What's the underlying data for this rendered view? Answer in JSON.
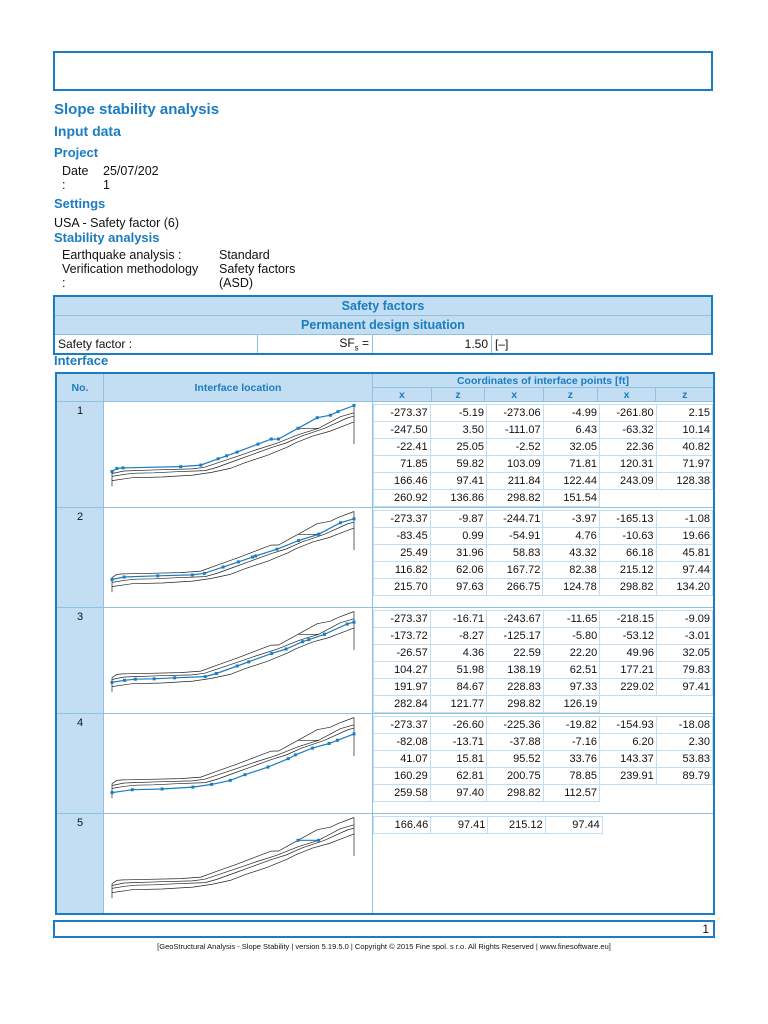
{
  "title": "Slope stability analysis",
  "input_data": "Input data",
  "project": {
    "heading": "Project",
    "date_label": "Date",
    "date_colon": ":",
    "date_value": "25/07/202",
    "date_value2": "1"
  },
  "settings": {
    "heading": "Settings",
    "value": "USA - Safety factor (6)"
  },
  "stability": {
    "heading": "Stability analysis",
    "rows": [
      {
        "label": "Earthquake analysis :",
        "value": "Standard"
      },
      {
        "label": "Verification methodology",
        "label2": ":",
        "value": "Safety factors",
        "value2": "(ASD)"
      }
    ]
  },
  "safety_factors": {
    "title": "Safety factors",
    "subtitle": "Permanent design situation",
    "label": "Safety factor :",
    "symbol": "SF",
    "sub": "s",
    "eq": " =",
    "value": "1.50",
    "unit": "[–]"
  },
  "interface": {
    "heading": "Interface",
    "col_no": "No.",
    "col_loc": "Interface location",
    "col_coords": "Coordinates of interface points [ft]",
    "x": "x",
    "z": "z",
    "highlight_color": "#1a7cc1",
    "rows": [
      {
        "no": "1",
        "points": [
          [
            -273.37,
            -5.19
          ],
          [
            -273.06,
            -4.99
          ],
          [
            -261.8,
            2.15
          ],
          [
            -247.5,
            3.5
          ],
          [
            -111.07,
            6.43
          ],
          [
            -63.32,
            10.14
          ],
          [
            -22.41,
            25.05
          ],
          [
            -2.52,
            32.05
          ],
          [
            22.36,
            40.82
          ],
          [
            71.85,
            59.82
          ],
          [
            103.09,
            71.81
          ],
          [
            120.31,
            71.97
          ],
          [
            166.46,
            97.41
          ],
          [
            211.84,
            122.44
          ],
          [
            243.09,
            128.38
          ],
          [
            260.92,
            136.86
          ],
          [
            298.82,
            151.54
          ]
        ]
      },
      {
        "no": "2",
        "points": [
          [
            -273.37,
            -9.87
          ],
          [
            -244.71,
            -3.97
          ],
          [
            -165.13,
            -1.08
          ],
          [
            -83.45,
            0.99
          ],
          [
            -54.91,
            4.76
          ],
          [
            -10.63,
            19.66
          ],
          [
            25.49,
            31.96
          ],
          [
            58.83,
            43.32
          ],
          [
            66.18,
            45.81
          ],
          [
            116.82,
            62.06
          ],
          [
            167.72,
            82.38
          ],
          [
            215.12,
            97.44
          ],
          [
            215.7,
            97.63
          ],
          [
            266.75,
            124.78
          ],
          [
            298.82,
            134.2
          ]
        ]
      },
      {
        "no": "3",
        "points": [
          [
            -273.37,
            -16.71
          ],
          [
            -243.67,
            -11.65
          ],
          [
            -218.15,
            -9.09
          ],
          [
            -173.72,
            -8.27
          ],
          [
            -125.17,
            -5.8
          ],
          [
            -53.12,
            -3.01
          ],
          [
            -26.57,
            4.36
          ],
          [
            22.59,
            22.2
          ],
          [
            49.96,
            32.05
          ],
          [
            104.27,
            51.98
          ],
          [
            138.19,
            62.51
          ],
          [
            177.21,
            79.83
          ],
          [
            191.97,
            84.67
          ],
          [
            228.83,
            97.33
          ],
          [
            229.02,
            97.41
          ],
          [
            282.84,
            121.77
          ],
          [
            298.82,
            126.19
          ]
        ]
      },
      {
        "no": "4",
        "points": [
          [
            -273.37,
            -26.6
          ],
          [
            -225.36,
            -19.82
          ],
          [
            -154.93,
            -18.08
          ],
          [
            -82.08,
            -13.71
          ],
          [
            -37.88,
            -7.16
          ],
          [
            6.2,
            2.3
          ],
          [
            41.07,
            15.81
          ],
          [
            95.52,
            33.76
          ],
          [
            143.37,
            53.83
          ],
          [
            160.29,
            62.81
          ],
          [
            200.75,
            78.85
          ],
          [
            239.91,
            89.79
          ],
          [
            259.58,
            97.4
          ],
          [
            298.82,
            112.57
          ]
        ]
      },
      {
        "no": "5",
        "points": [
          [
            166.46,
            97.41
          ],
          [
            215.12,
            97.44
          ]
        ]
      }
    ]
  },
  "page_number": "1",
  "footer": "[GeoStructural Analysis - Slope Stability | version 5.19.5.0 | Copyright © 2015 Fine spol. s r.o. All Rights Reserved | www.finesoftware.eu]"
}
